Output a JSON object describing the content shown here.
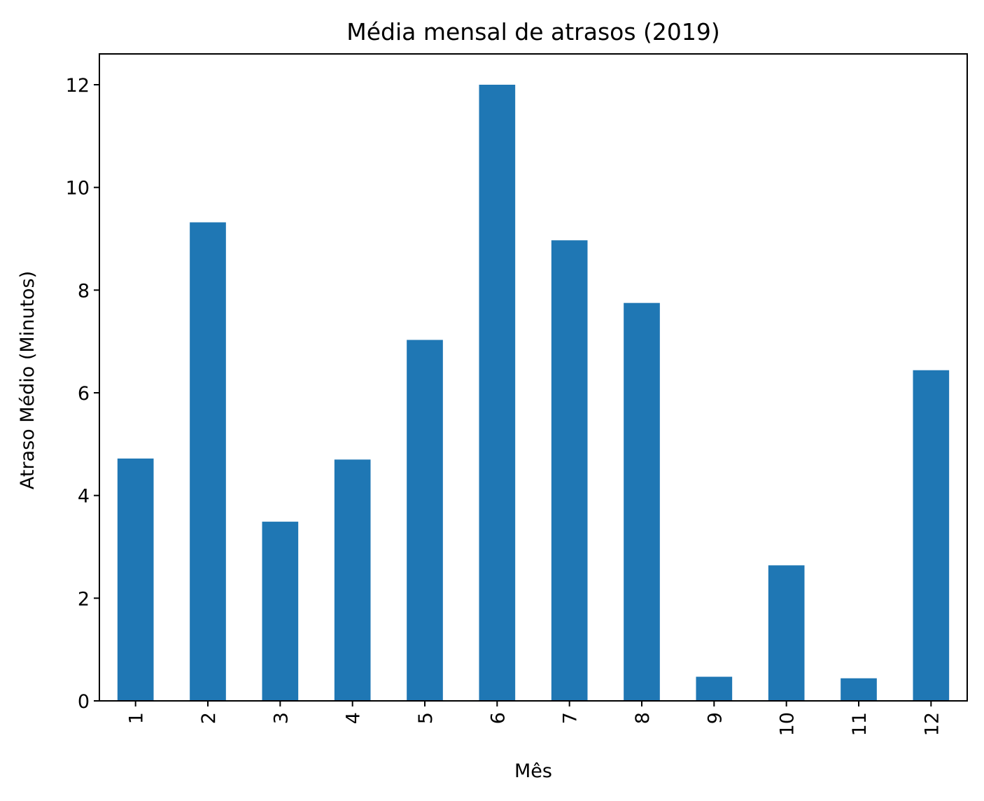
{
  "chart_data": {
    "type": "bar",
    "title": "Média mensal de atrasos (2019)",
    "xlabel": "Mês",
    "ylabel": "Atraso Médio (Minutos)",
    "categories": [
      "1",
      "2",
      "3",
      "4",
      "5",
      "6",
      "7",
      "8",
      "9",
      "10",
      "11",
      "12"
    ],
    "values": [
      4.72,
      9.32,
      3.49,
      4.7,
      7.03,
      12.0,
      8.97,
      7.75,
      0.47,
      2.64,
      0.44,
      6.44
    ],
    "yticks": [
      "0",
      "2",
      "4",
      "6",
      "8",
      "10",
      "12"
    ],
    "ylim": [
      0,
      12.6
    ],
    "grid": false,
    "legend": "none",
    "bar_color": "#1f77b4",
    "x_tick_rotation": "vertical"
  }
}
